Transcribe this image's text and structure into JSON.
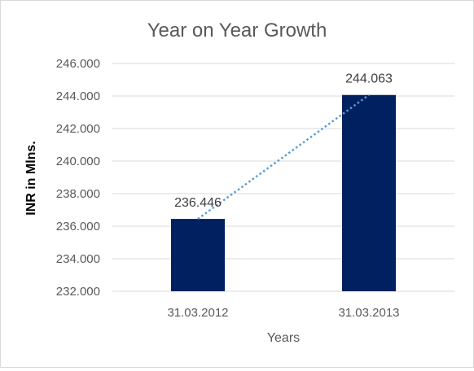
{
  "chart_data": {
    "type": "bar",
    "title": "Year on Year Growth",
    "xlabel": "Years",
    "ylabel": "INR in Mlns.",
    "categories": [
      "31.03.2012",
      "31.03.2013"
    ],
    "values": [
      236.446,
      244.063
    ],
    "data_labels": [
      "236.446",
      "244.063"
    ],
    "ylim": [
      232,
      246
    ],
    "y_ticks": [
      232,
      234,
      236,
      238,
      240,
      242,
      244,
      246
    ],
    "y_tick_labels": [
      "232.000",
      "234.000",
      "236.000",
      "238.000",
      "240.000",
      "242.000",
      "244.000",
      "246.000"
    ],
    "grid": true,
    "trendline": "linear, dotted",
    "legend": "none",
    "colors": {
      "bar": "#002060",
      "trendline": "#5b9bd5",
      "grid": "#d9d9d9",
      "text": "#595959"
    }
  }
}
